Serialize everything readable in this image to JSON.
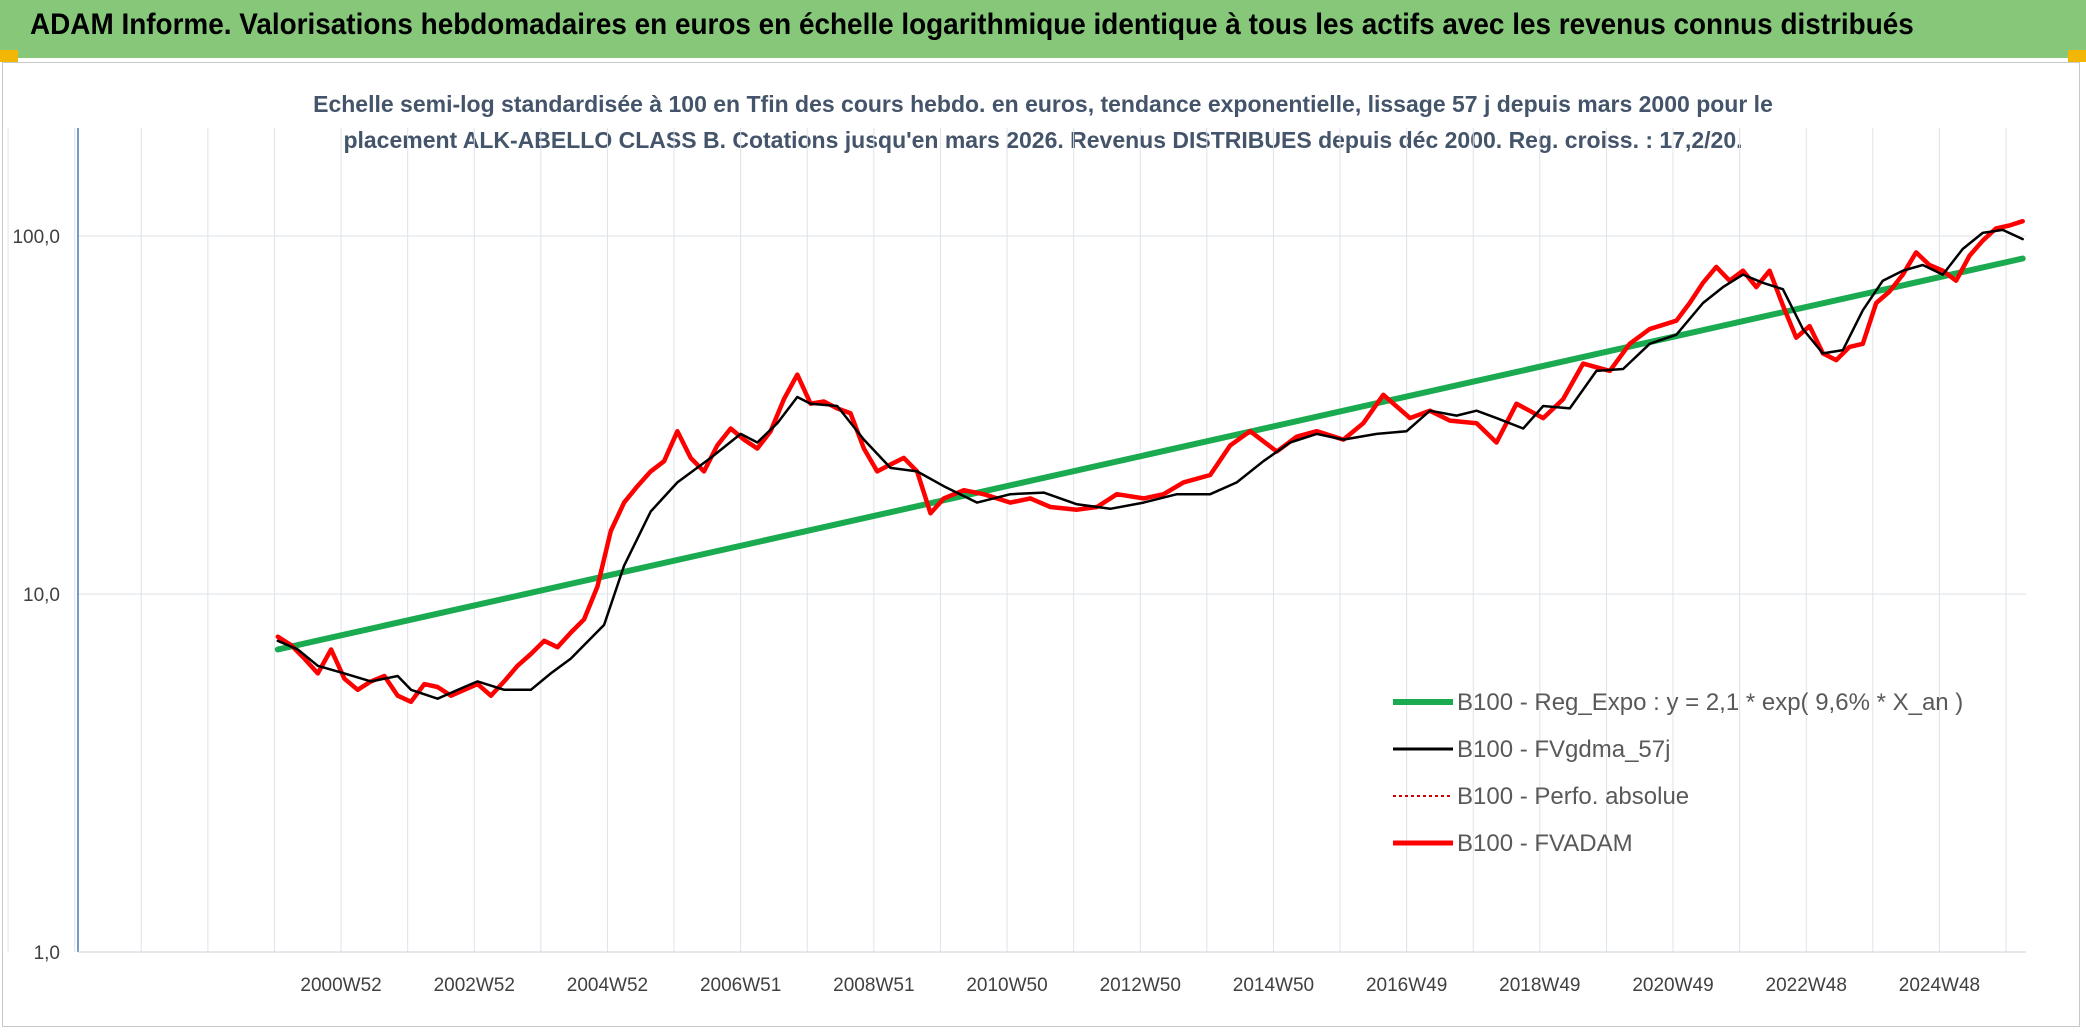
{
  "header": {
    "title": "ADAM Informe. Valorisations hebdomadaires en euros en échelle logarithmique identique à tous les actifs avec les revenus connus distribués"
  },
  "colors": {
    "banner": "#86c77a",
    "corner": "#f2b705",
    "regression": "#1aaa50",
    "fvgdma": "#000000",
    "perfo": "#cc0000",
    "fvadam": "#ff0000",
    "grid": "#dde3ea",
    "axis": "#4a7ab5"
  },
  "chart_data": {
    "type": "line",
    "title_lines": [
      "Echelle semi-log standardisée à 100 en Tfin des cours hebdo. en euros, tendance exponentielle, lissage 57 j depuis mars 2000 pour le",
      "placement ALK-ABELLO CLASS B. Cotations jusqu'en mars 2026. Revenus DISTRIBUES depuis déc 2000. Reg. croiss. : 17,2/20."
    ],
    "y_scale": "log",
    "ylim": [
      1,
      100
    ],
    "y_ticks": [
      {
        "value": 100,
        "label": "100,0"
      },
      {
        "value": 10,
        "label": "10,0"
      },
      {
        "value": 1,
        "label": "1,0"
      }
    ],
    "xlim": [
      1997,
      2026.25
    ],
    "x_ticks": [
      {
        "value": 2000.95,
        "label": "2000W52"
      },
      {
        "value": 2002.95,
        "label": "2002W52"
      },
      {
        "value": 2004.95,
        "label": "2004W52"
      },
      {
        "value": 2006.95,
        "label": "2006W51"
      },
      {
        "value": 2008.95,
        "label": "2008W51"
      },
      {
        "value": 2010.95,
        "label": "2010W50"
      },
      {
        "value": 2012.95,
        "label": "2012W50"
      },
      {
        "value": 2014.95,
        "label": "2014W50"
      },
      {
        "value": 2016.95,
        "label": "2016W49"
      },
      {
        "value": 2018.95,
        "label": "2018W49"
      },
      {
        "value": 2020.95,
        "label": "2020W49"
      },
      {
        "value": 2022.95,
        "label": "2022W48"
      },
      {
        "value": 2024.95,
        "label": "2024W48"
      }
    ],
    "grid": true,
    "legend_position": "bottom-right",
    "series": [
      {
        "name": "B100 - Reg_Expo : y = 2,1 * exp( 9,6% *  X_an )",
        "style": "regression",
        "x": [
          2000.0,
          2026.2
        ],
        "y": [
          7.0,
          86.5
        ]
      },
      {
        "name": "B100 - FVgdma_57j",
        "style": "fvgdma",
        "x": [
          2000.0,
          2000.3,
          2000.6,
          2001.0,
          2001.4,
          2001.8,
          2002.0,
          2002.4,
          2002.8,
          2003.0,
          2003.4,
          2003.8,
          2004.1,
          2004.4,
          2004.6,
          2004.9,
          2005.2,
          2005.6,
          2006.0,
          2006.5,
          2006.95,
          2007.2,
          2007.5,
          2007.8,
          2008.0,
          2008.4,
          2008.8,
          2009.2,
          2009.6,
          2010.0,
          2010.5,
          2011.0,
          2011.5,
          2012.0,
          2012.5,
          2013.0,
          2013.5,
          2014.0,
          2014.4,
          2014.8,
          2015.2,
          2015.6,
          2016.0,
          2016.5,
          2016.95,
          2017.3,
          2017.7,
          2018.0,
          2018.3,
          2018.7,
          2019.0,
          2019.4,
          2019.8,
          2020.2,
          2020.6,
          2021.0,
          2021.4,
          2021.7,
          2022.0,
          2022.3,
          2022.6,
          2022.9,
          2023.2,
          2023.5,
          2023.8,
          2024.1,
          2024.4,
          2024.7,
          2025.0,
          2025.3,
          2025.6,
          2025.9,
          2026.1,
          2026.2
        ],
        "y": [
          7.4,
          7.0,
          6.3,
          6.0,
          5.7,
          5.9,
          5.4,
          5.1,
          5.5,
          5.7,
          5.4,
          5.4,
          6.0,
          6.6,
          7.2,
          8.2,
          12.0,
          17.0,
          20.5,
          24.0,
          28.0,
          26.5,
          30.0,
          35.5,
          34.0,
          33.5,
          27.0,
          22.5,
          22.0,
          20.0,
          18.0,
          19.0,
          19.2,
          17.8,
          17.3,
          18.0,
          19.0,
          19.0,
          20.5,
          23.5,
          26.5,
          28.0,
          27.0,
          28.0,
          28.5,
          32.5,
          31.5,
          32.5,
          31.0,
          29.0,
          33.5,
          33.0,
          42.0,
          42.5,
          50.0,
          53.0,
          65.0,
          72.0,
          78.0,
          74.0,
          71.0,
          55.0,
          47.0,
          48.0,
          62.0,
          75.0,
          80.0,
          83.0,
          78.0,
          92.0,
          102.0,
          104.0,
          100.0,
          98.0
        ]
      },
      {
        "name": "B100 - Perfo. absolue",
        "style": "perfo",
        "x": [],
        "y": []
      },
      {
        "name": "B100 - FVADAM",
        "style": "fvadam",
        "x": [
          2000.0,
          2000.2,
          2000.4,
          2000.6,
          2000.8,
          2001.0,
          2001.2,
          2001.4,
          2001.6,
          2001.8,
          2002.0,
          2002.2,
          2002.4,
          2002.6,
          2002.8,
          2003.0,
          2003.2,
          2003.4,
          2003.6,
          2003.8,
          2004.0,
          2004.2,
          2004.4,
          2004.6,
          2004.8,
          2005.0,
          2005.2,
          2005.4,
          2005.6,
          2005.8,
          2006.0,
          2006.2,
          2006.4,
          2006.6,
          2006.8,
          2007.0,
          2007.2,
          2007.4,
          2007.6,
          2007.8,
          2008.0,
          2008.2,
          2008.4,
          2008.6,
          2008.8,
          2009.0,
          2009.2,
          2009.4,
          2009.6,
          2009.8,
          2010.0,
          2010.3,
          2010.6,
          2011.0,
          2011.3,
          2011.6,
          2012.0,
          2012.3,
          2012.6,
          2013.0,
          2013.3,
          2013.6,
          2014.0,
          2014.3,
          2014.6,
          2015.0,
          2015.3,
          2015.6,
          2016.0,
          2016.3,
          2016.6,
          2017.0,
          2017.3,
          2017.6,
          2018.0,
          2018.3,
          2018.6,
          2019.0,
          2019.3,
          2019.6,
          2020.0,
          2020.3,
          2020.6,
          2021.0,
          2021.2,
          2021.4,
          2021.6,
          2021.8,
          2022.0,
          2022.2,
          2022.4,
          2022.6,
          2022.8,
          2023.0,
          2023.2,
          2023.4,
          2023.6,
          2023.8,
          2024.0,
          2024.2,
          2024.4,
          2024.6,
          2024.8,
          2025.0,
          2025.2,
          2025.4,
          2025.6,
          2025.8,
          2026.0,
          2026.2
        ],
        "y": [
          7.6,
          7.2,
          6.6,
          6.0,
          7.0,
          5.8,
          5.4,
          5.7,
          5.9,
          5.2,
          5.0,
          5.6,
          5.5,
          5.2,
          5.4,
          5.6,
          5.2,
          5.7,
          6.3,
          6.8,
          7.4,
          7.1,
          7.8,
          8.5,
          10.5,
          15.0,
          18.0,
          20.0,
          22.0,
          23.5,
          28.5,
          24.0,
          22.0,
          26.0,
          29.0,
          27.0,
          25.5,
          28.5,
          35.0,
          41.0,
          34.0,
          34.5,
          33.0,
          32.0,
          25.5,
          22.0,
          23.0,
          24.0,
          22.0,
          16.8,
          18.5,
          19.5,
          19.0,
          18.0,
          18.5,
          17.5,
          17.2,
          17.5,
          19.0,
          18.5,
          19.0,
          20.5,
          21.5,
          26.0,
          28.5,
          25.0,
          27.5,
          28.5,
          27.0,
          30.0,
          36.0,
          31.0,
          32.5,
          30.5,
          30.0,
          26.5,
          34.0,
          31.0,
          35.0,
          44.0,
          42.0,
          50.0,
          55.0,
          58.0,
          65.0,
          74.0,
          82.0,
          75.0,
          80.0,
          72.0,
          80.0,
          64.0,
          52.0,
          56.0,
          47.0,
          45.0,
          49.0,
          50.0,
          65.0,
          70.0,
          78.0,
          90.0,
          83.0,
          80.0,
          75.0,
          88.0,
          97.0,
          105.0,
          107.0,
          110.0
        ]
      }
    ]
  }
}
